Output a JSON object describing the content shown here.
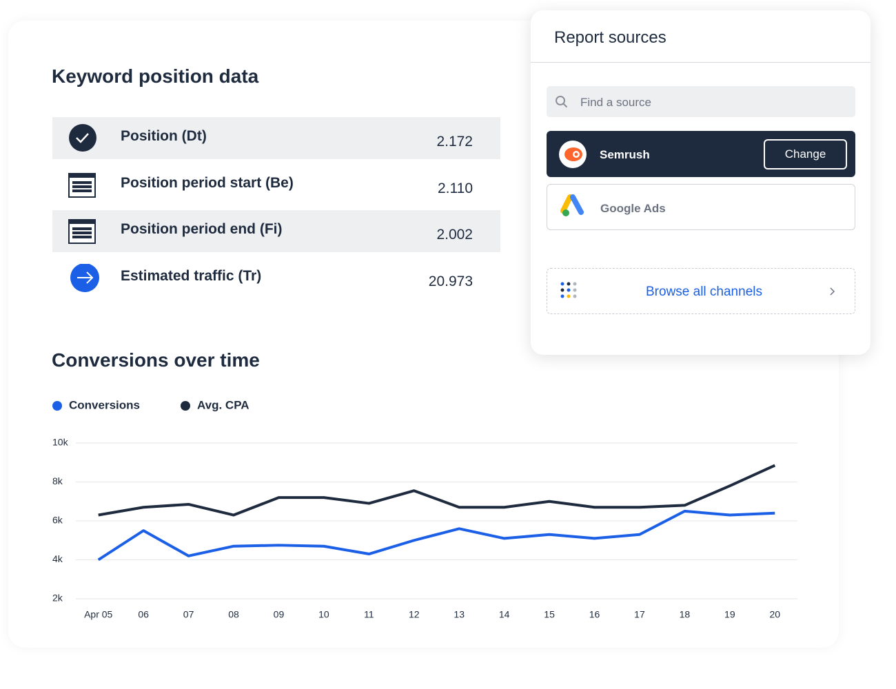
{
  "keyword": {
    "title": "Keyword position data",
    "rows": [
      {
        "label": "Position (Dt)",
        "value": "2.172"
      },
      {
        "label": "Position period start (Be)",
        "value": "2.110"
      },
      {
        "label": "Position period end (Fi)",
        "value": "2.002"
      },
      {
        "label": "Estimated traffic (Tr)",
        "value": "20.973"
      }
    ]
  },
  "sources": {
    "title": "Report sources",
    "search_placeholder": "Find a source",
    "items": [
      {
        "name": "Semrush",
        "action": "Change"
      },
      {
        "name": "Google Ads"
      }
    ],
    "browse": "Browse all channels"
  },
  "chart_data": {
    "type": "line",
    "title": "Conversions over time",
    "categories": [
      "Apr 05",
      "06",
      "07",
      "08",
      "09",
      "10",
      "11",
      "12",
      "13",
      "14",
      "15",
      "16",
      "17",
      "18",
      "19",
      "20"
    ],
    "series": [
      {
        "name": "Conversions",
        "color": "#1a5fe6",
        "values": [
          4000,
          5500,
          4200,
          4700,
          4750,
          4700,
          4300,
          5000,
          5600,
          5100,
          5300,
          5100,
          5300,
          6500,
          6300,
          6400
        ]
      },
      {
        "name": "Avg. CPA",
        "color": "#1e2b3e",
        "values": [
          6300,
          6700,
          6850,
          6300,
          7200,
          7200,
          6900,
          7550,
          6700,
          6700,
          7000,
          6700,
          6700,
          6800,
          7800,
          8850
        ]
      }
    ],
    "ylim": [
      2000,
      10000
    ],
    "yticks": [
      {
        "value": 2000,
        "label": "2k"
      },
      {
        "value": 4000,
        "label": "4k"
      },
      {
        "value": 6000,
        "label": "6k"
      },
      {
        "value": 8000,
        "label": "8k"
      },
      {
        "value": 10000,
        "label": "10k"
      }
    ],
    "grid": true
  }
}
